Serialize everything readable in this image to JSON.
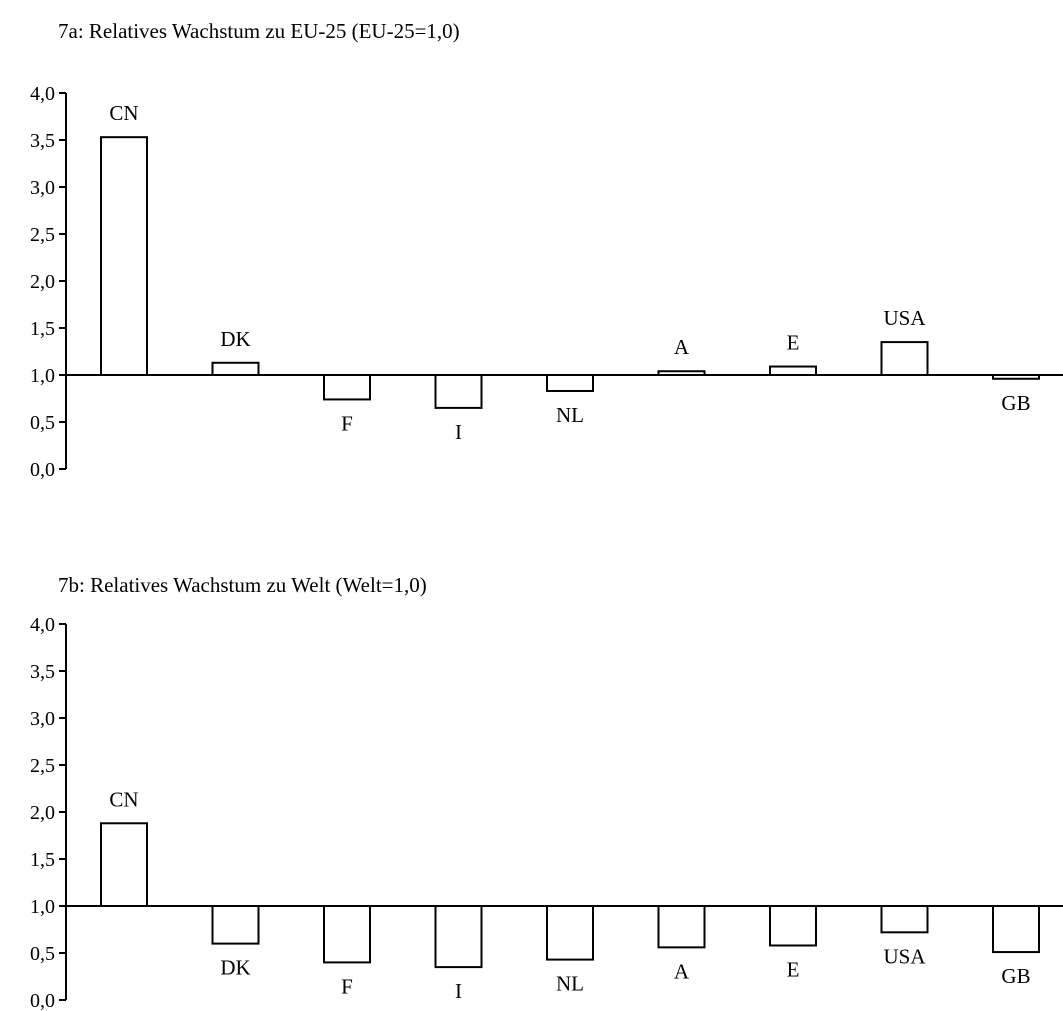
{
  "chart_data": [
    {
      "type": "bar",
      "title": "7a:  Relatives Wachstum zu EU-25 (EU-25=1,0)",
      "baseline": 1.0,
      "ylim": [
        0,
        4
      ],
      "yticks": [
        "0,0",
        "0,5",
        "1,0",
        "1,5",
        "2,0",
        "2,5",
        "3,0",
        "3,5",
        "4,0"
      ],
      "categories": [
        "CN",
        "DK",
        "F",
        "I",
        "NL",
        "A",
        "E",
        "USA",
        "GB"
      ],
      "values": [
        3.53,
        1.13,
        0.74,
        0.65,
        0.83,
        1.04,
        1.09,
        1.35,
        0.96
      ],
      "grid": false
    },
    {
      "type": "bar",
      "title": "7b:  Relatives Wachstum zu Welt (Welt=1,0)",
      "baseline": 1.0,
      "ylim": [
        0,
        4
      ],
      "yticks": [
        "0,0",
        "0,5",
        "1,0",
        "1,5",
        "2,0",
        "2,5",
        "3,0",
        "3,5",
        "4,0"
      ],
      "categories": [
        "CN",
        "DK",
        "F",
        "I",
        "NL",
        "A",
        "E",
        "USA",
        "GB"
      ],
      "values": [
        1.88,
        0.6,
        0.4,
        0.35,
        0.43,
        0.56,
        0.58,
        0.72,
        0.51
      ],
      "grid": false
    }
  ]
}
